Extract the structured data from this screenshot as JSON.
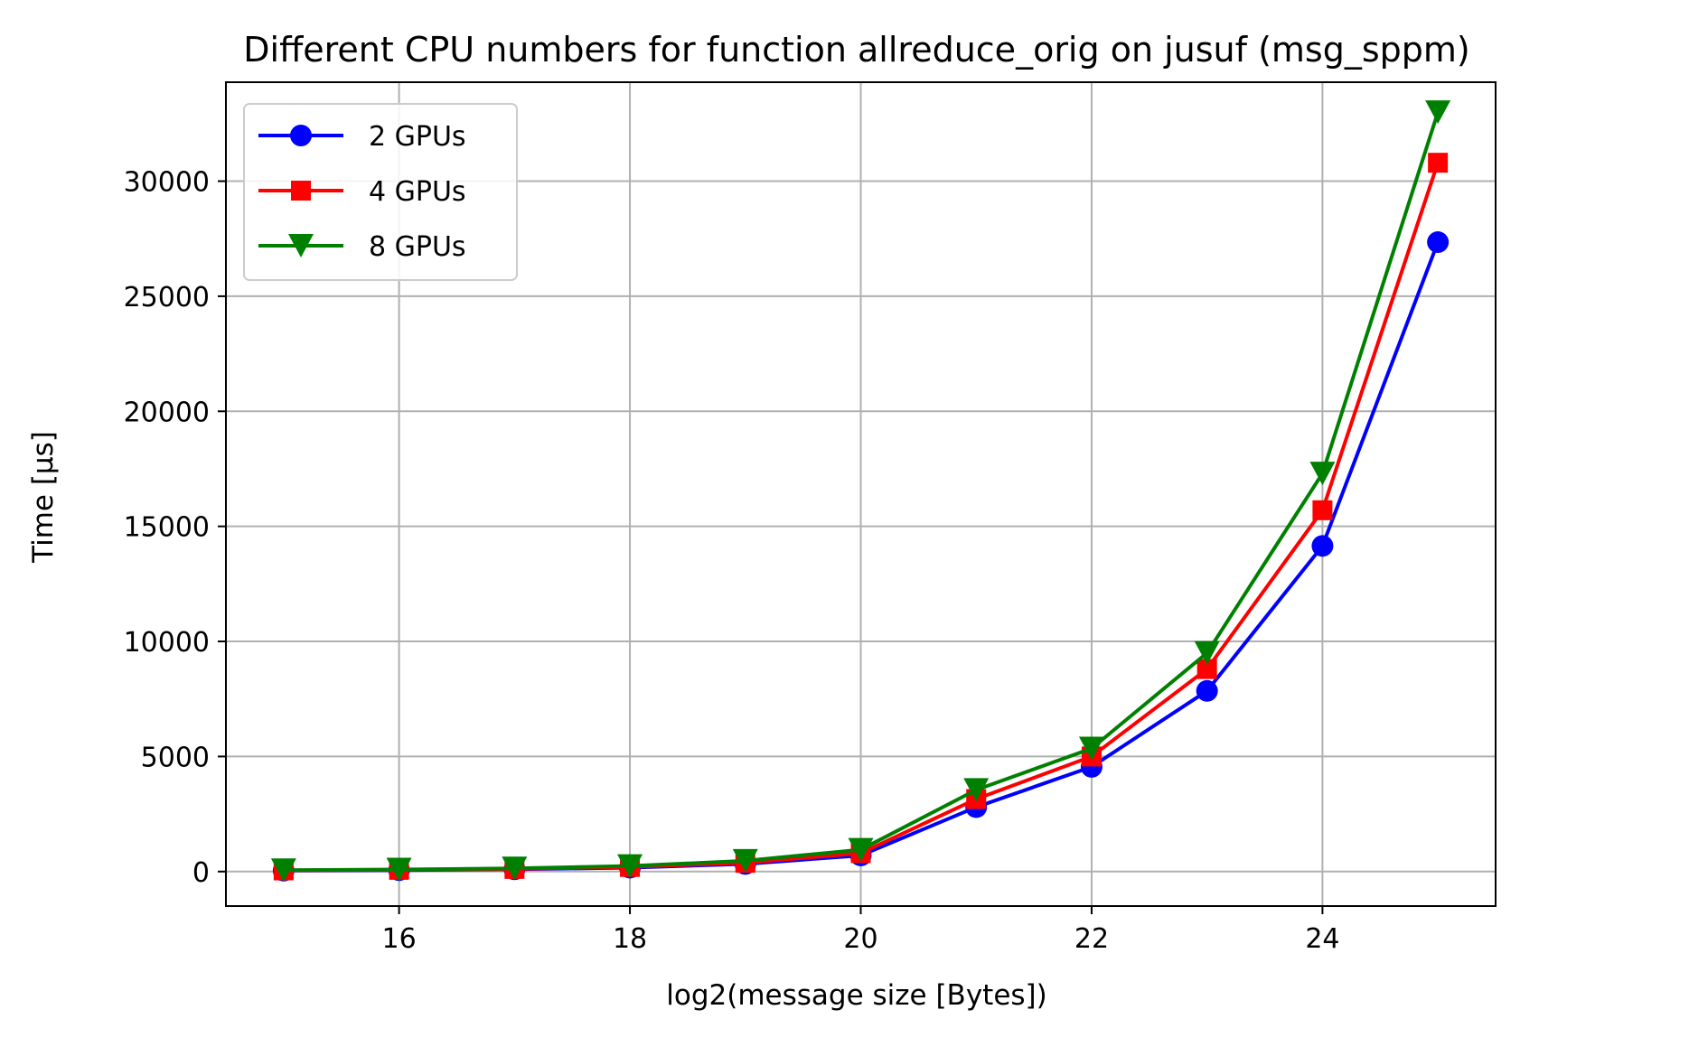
{
  "chart_data": {
    "type": "line",
    "title": "Different CPU numbers for function allreduce_orig on jusuf (msg_sppm)",
    "xlabel": "log2(message size [Bytes])",
    "ylabel": "Time [µs]",
    "xlim": [
      14.5,
      25.5
    ],
    "ylim": [
      -1500,
      34300
    ],
    "x_ticks": [
      16,
      18,
      20,
      22,
      24
    ],
    "y_ticks": [
      0,
      5000,
      10000,
      15000,
      20000,
      25000,
      30000
    ],
    "grid": true,
    "legend_position": "top-left",
    "x": [
      15,
      16,
      17,
      18,
      19,
      20,
      21,
      22,
      23,
      24,
      25
    ],
    "series": [
      {
        "name": "2 GPUs",
        "color": "#0000ff",
        "marker": "circle",
        "values": [
          40,
          60,
          100,
          170,
          330,
          700,
          2800,
          4550,
          7850,
          14150,
          27350
        ]
      },
      {
        "name": "4 GPUs",
        "color": "#ff0000",
        "marker": "square",
        "values": [
          50,
          75,
          115,
          200,
          380,
          800,
          3150,
          5000,
          8800,
          15700,
          30800
        ]
      },
      {
        "name": "8 GPUs",
        "color": "#008000",
        "marker": "triangle-down",
        "values": [
          60,
          90,
          140,
          240,
          470,
          950,
          3550,
          5350,
          9500,
          17300,
          33000
        ]
      }
    ]
  }
}
